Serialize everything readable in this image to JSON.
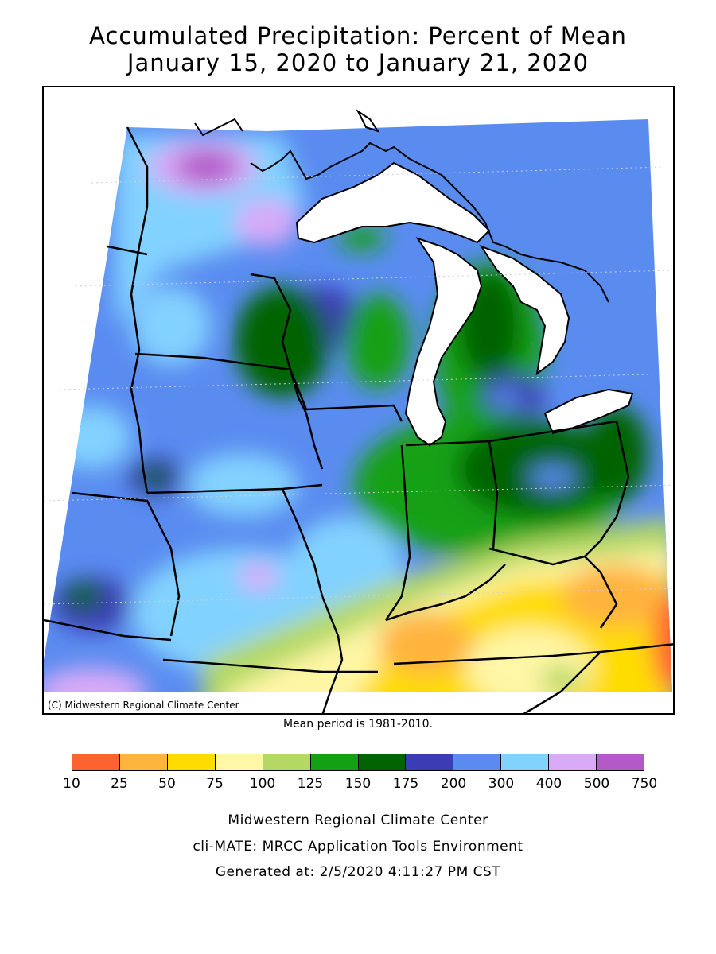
{
  "title": {
    "line1": "Accumulated Precipitation: Percent of Mean",
    "line2": "January 15, 2020 to January 21, 2020"
  },
  "map": {
    "copyright": "(C) Midwestern Regional Climate Center",
    "mean_period": "Mean period is 1981-2010."
  },
  "legend": {
    "ticks": [
      "10",
      "25",
      "50",
      "75",
      "100",
      "125",
      "150",
      "175",
      "200",
      "300",
      "400",
      "500",
      "750"
    ],
    "colors": [
      "#ff6430",
      "#ffb43c",
      "#ffdc00",
      "#fff6a6",
      "#b4d864",
      "#14a014",
      "#006400",
      "#3c3cb4",
      "#5a8cf0",
      "#82d2ff",
      "#d8aaf8",
      "#b45ac8"
    ]
  },
  "footer": {
    "line1": "Midwestern Regional Climate Center",
    "line2": "cli-MATE: MRCC Application Tools Environment",
    "line3": "Generated at: 2/5/2020 4:11:27 PM CST"
  }
}
